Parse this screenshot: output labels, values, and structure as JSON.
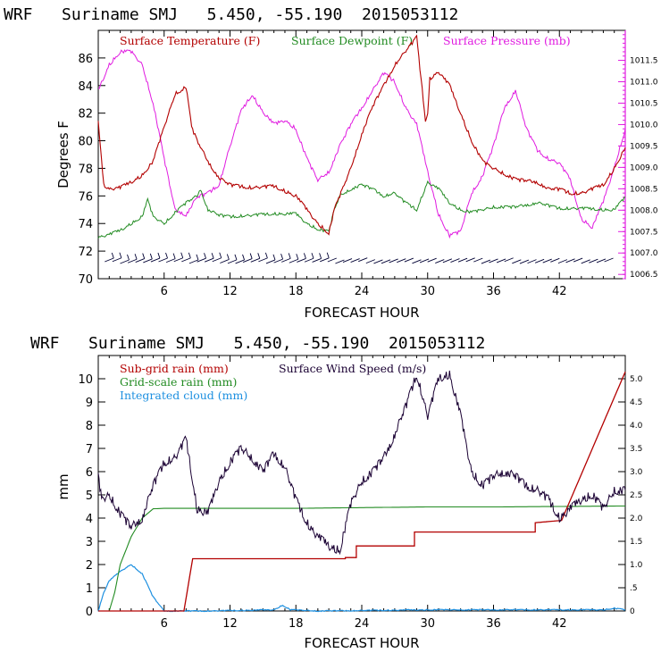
{
  "chart_data": [
    {
      "type": "line",
      "title": "WRF   Suriname SMJ   5.450, -55.190  2015053112",
      "xlabel": "FORECAST HOUR",
      "ylabel": "Degrees F",
      "xlim": [
        0,
        48
      ],
      "ylim": [
        70,
        88
      ],
      "x_ticks": [
        "6",
        "12",
        "18",
        "24",
        "30",
        "36",
        "42"
      ],
      "y_ticks": [
        "70",
        "72",
        "74",
        "76",
        "78",
        "80",
        "82",
        "84",
        "86"
      ],
      "y2lim": [
        1006.4,
        1012.2
      ],
      "y2_ticks": [
        "1006.5",
        "1007.0",
        "1007.5",
        "1008.0",
        "1008.5",
        "1009.0",
        "1009.5",
        "1010.0",
        "1010.5",
        "1011.0",
        "1011.5"
      ],
      "colors": {
        "temperature": "#b30000",
        "dewpoint": "#228b22",
        "pressure": "#e01be0",
        "wind": "#000033"
      },
      "legend": [
        "Surface Temperature (F)",
        "Surface Dewpoint (F)",
        "Surface Pressure (mb)"
      ],
      "series": [
        {
          "name": "Surface Temperature (F)",
          "axis": "left",
          "x": [
            0,
            0.5,
            1,
            2,
            3,
            4,
            5,
            6,
            7,
            8,
            8.5,
            9,
            10,
            11,
            12,
            14,
            16,
            18,
            19,
            20,
            21,
            21.5,
            22,
            23,
            24,
            25,
            26,
            27,
            28,
            29,
            29.8,
            30,
            30.2,
            31,
            32,
            33,
            34,
            35,
            36,
            38,
            40,
            41,
            42,
            43,
            44,
            45,
            46,
            47,
            48
          ],
          "y": [
            81.5,
            76.8,
            76.5,
            76.6,
            77.0,
            77.5,
            78.5,
            81.0,
            83.4,
            83.9,
            81.0,
            80.0,
            78.5,
            77.3,
            76.8,
            76.6,
            76.7,
            76.0,
            75.0,
            74.0,
            73.3,
            75.0,
            76.0,
            78.0,
            80.5,
            82.5,
            84.0,
            85.5,
            86.5,
            87.5,
            81.5,
            82.0,
            84.5,
            85.0,
            84.0,
            82.0,
            80.0,
            78.5,
            78.0,
            77.2,
            77.0,
            76.5,
            76.5,
            76.2,
            76.2,
            76.5,
            76.8,
            78.0,
            79.5
          ]
        },
        {
          "name": "Surface Dewpoint (F)",
          "axis": "left",
          "x": [
            0,
            1,
            2,
            3,
            4,
            4.5,
            5,
            6,
            7,
            8,
            9,
            9.3,
            10,
            11,
            12,
            14,
            16,
            18,
            19,
            20,
            21,
            21.5,
            22,
            23,
            24,
            25,
            26,
            27,
            28,
            29,
            30,
            31,
            32,
            33,
            34,
            36,
            38,
            40,
            42,
            44,
            46,
            47,
            48
          ],
          "y": [
            73.0,
            73.2,
            73.5,
            74.0,
            74.5,
            75.7,
            74.5,
            74.0,
            74.8,
            75.5,
            76.0,
            76.5,
            75.0,
            74.6,
            74.5,
            74.6,
            74.7,
            74.7,
            74.0,
            73.6,
            73.4,
            75.0,
            76.0,
            76.5,
            76.8,
            76.5,
            76.0,
            76.2,
            75.5,
            75.0,
            77.0,
            76.5,
            75.5,
            75.0,
            74.8,
            75.2,
            75.2,
            75.5,
            75.1,
            75.1,
            75.0,
            75.0,
            75.9
          ]
        },
        {
          "name": "Surface Pressure (mb)",
          "axis": "right",
          "x": [
            0,
            1,
            2,
            3,
            4,
            5,
            6,
            7,
            8,
            9,
            10,
            11,
            12,
            13,
            14,
            15,
            16,
            17,
            18,
            19,
            20,
            21,
            22,
            23,
            24,
            25,
            26,
            27,
            28,
            29,
            30,
            31,
            32,
            33,
            34,
            35,
            36,
            37,
            38,
            39,
            40,
            41,
            42,
            43,
            44,
            45,
            46,
            47,
            48
          ],
          "y": [
            1010.8,
            1011.4,
            1011.7,
            1011.7,
            1011.4,
            1010.5,
            1009.2,
            1008.0,
            1007.9,
            1008.3,
            1008.4,
            1008.6,
            1009.5,
            1010.3,
            1010.7,
            1010.3,
            1010.0,
            1010.1,
            1009.9,
            1009.2,
            1008.7,
            1008.9,
            1009.5,
            1010.0,
            1010.4,
            1010.8,
            1011.2,
            1011.0,
            1010.4,
            1010.0,
            1008.9,
            1007.9,
            1007.4,
            1007.5,
            1008.4,
            1008.8,
            1009.5,
            1010.4,
            1010.8,
            1009.9,
            1009.4,
            1009.2,
            1009.1,
            1008.7,
            1007.8,
            1007.6,
            1008.2,
            1009.0,
            1009.9
          ]
        }
      ]
    },
    {
      "type": "line",
      "title": "WRF   Suriname SMJ   5.450, -55.190  2015053112",
      "xlabel": "FORECAST HOUR",
      "ylabel": "mm",
      "xlim": [
        0,
        48
      ],
      "ylim": [
        0,
        11
      ],
      "x_ticks": [
        "6",
        "12",
        "18",
        "24",
        "30",
        "36",
        "42"
      ],
      "y_ticks": [
        "0",
        "1",
        "2",
        "3",
        "4",
        "5",
        "6",
        "7",
        "8",
        "9",
        "10"
      ],
      "y2lim": [
        0,
        5.5
      ],
      "y2_ticks": [
        "0",
        ".5",
        "1.0",
        "1.5",
        "2.0",
        "2.5",
        "3.0",
        "3.5",
        "4.0",
        "4.5",
        "5.0"
      ],
      "colors": {
        "subgrid": "#b30000",
        "gridscale": "#228b22",
        "cloud": "#1e90e0",
        "wind": "#1a0033"
      },
      "legend": [
        "Sub-grid rain (mm)",
        "Grid-scale rain (mm)",
        "Integrated cloud (mm)",
        "Surface Wind Speed (m/s)"
      ],
      "series": [
        {
          "name": "Sub-grid rain (mm)",
          "axis": "left",
          "x": [
            0,
            7.8,
            8.6,
            22.5,
            22.5,
            23.5,
            23.5,
            28.8,
            28.8,
            39.8,
            39.8,
            42.2,
            48
          ],
          "y": [
            0,
            0,
            2.25,
            2.25,
            2.3,
            2.3,
            2.8,
            2.8,
            3.4,
            3.4,
            3.8,
            3.9,
            10.3
          ]
        },
        {
          "name": "Grid-scale rain (mm)",
          "axis": "left",
          "x": [
            0,
            1,
            1.5,
            2,
            3,
            4,
            5,
            6,
            12,
            18,
            24,
            30,
            36,
            42,
            48
          ],
          "y": [
            0,
            0,
            0.8,
            2.0,
            3.2,
            4.0,
            4.4,
            4.42,
            4.42,
            4.42,
            4.45,
            4.48,
            4.48,
            4.5,
            4.52
          ]
        },
        {
          "name": "Integrated cloud (mm)",
          "axis": "left",
          "x": [
            0,
            0.5,
            1,
            2,
            3,
            4,
            5,
            6,
            10,
            16,
            16.8,
            17.5,
            20,
            24,
            30,
            36,
            42,
            46,
            47,
            48
          ],
          "y": [
            0,
            0.8,
            1.3,
            1.7,
            2.0,
            1.6,
            0.6,
            0,
            0,
            0.05,
            0.25,
            0.05,
            0,
            0.02,
            0.05,
            0.05,
            0.05,
            0.05,
            0.12,
            0.05
          ]
        },
        {
          "name": "Surface Wind Speed (m/s)",
          "axis": "right",
          "x": [
            0,
            0.3,
            1,
            2,
            3,
            4,
            5,
            6,
            7,
            8,
            9,
            10,
            11,
            12,
            13,
            14,
            15,
            16,
            17,
            18,
            19,
            20,
            21,
            22,
            23,
            24,
            25,
            26,
            27,
            28,
            29,
            30,
            31,
            32,
            33,
            34,
            35,
            36,
            37,
            38,
            39,
            40,
            41,
            42,
            43,
            44,
            45,
            46,
            47,
            48
          ],
          "y": [
            2.9,
            2.4,
            2.5,
            2.1,
            1.8,
            2.0,
            2.7,
            3.2,
            3.3,
            3.7,
            2.2,
            2.1,
            2.8,
            3.2,
            3.5,
            3.3,
            3.0,
            3.4,
            3.1,
            2.4,
            1.9,
            1.6,
            1.4,
            1.3,
            2.3,
            2.8,
            3.0,
            3.3,
            3.8,
            4.4,
            5.1,
            4.2,
            5.0,
            5.1,
            4.2,
            3.0,
            2.7,
            2.9,
            3.0,
            2.9,
            2.7,
            2.6,
            2.4,
            2.0,
            2.2,
            2.4,
            2.5,
            2.2,
            2.6,
            2.6
          ]
        }
      ]
    }
  ]
}
